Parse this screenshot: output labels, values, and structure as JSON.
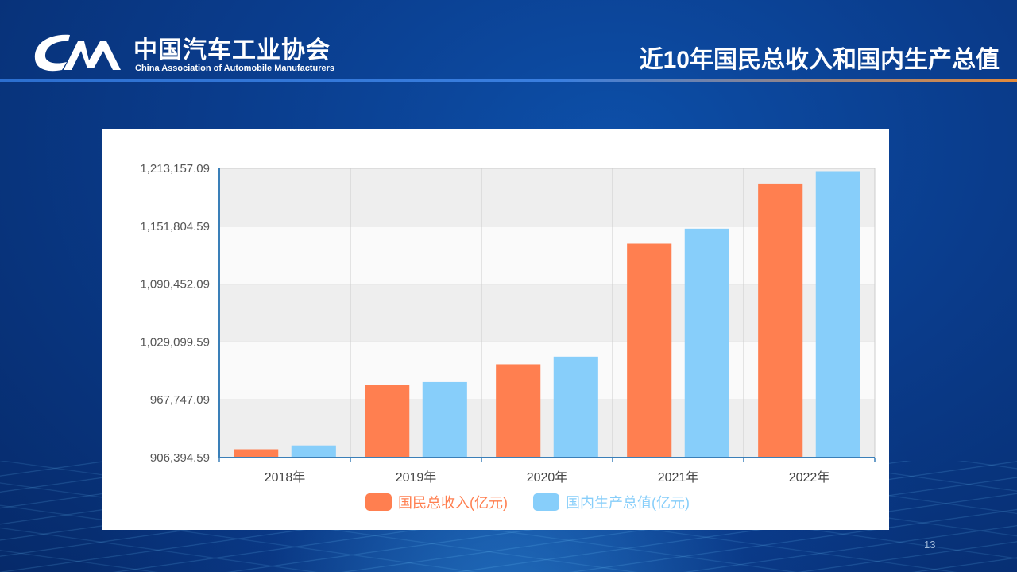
{
  "header": {
    "logo_cn": "中国汽车工业协会",
    "logo_en": "China Association of Automobile Manufacturers",
    "title": "近10年国民总收入和国内生产总值"
  },
  "page_number": "13",
  "colors": {
    "gni": "#ff7f50",
    "gdp": "#87cefa",
    "plot_band": "#eeeeee",
    "axis": "#3a7fb8"
  },
  "chart_data": {
    "type": "bar",
    "categories": [
      "2018年",
      "2019年",
      "2020年",
      "2021年",
      "2022年"
    ],
    "series": [
      {
        "name": "国民总收入(亿元)",
        "values": [
          915244,
          983751,
          1005451,
          1133518,
          1197215
        ]
      },
      {
        "name": "国内生产总值(亿元)",
        "values": [
          919281,
          986515,
          1013567,
          1149237,
          1210207
        ]
      }
    ],
    "y_ticks": [
      "906,394.59",
      "967,747.09",
      "1,029,099.59",
      "1,090,452.09",
      "1,151,804.59",
      "1,213,157.09"
    ],
    "ylim": [
      906394.59,
      1213157.09
    ],
    "title": "",
    "xlabel": "",
    "ylabel": "",
    "legend_position": "bottom",
    "grid": true
  }
}
